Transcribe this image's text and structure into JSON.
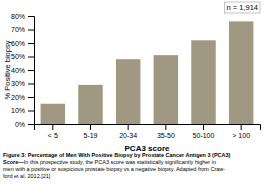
{
  "chart_data": {
    "type": "bar",
    "categories": [
      "< 5",
      "5-19",
      "20-34",
      "35-50",
      "50-100",
      "> 100"
    ],
    "values": [
      15,
      29,
      48,
      51,
      62,
      76
    ],
    "color": "#a09880",
    "xlabel": "PCA3 score",
    "ylabel": "% Positive biopsy",
    "ylim": [
      0,
      80
    ],
    "yticks": [
      {
        "value": 0,
        "label": "0%"
      },
      {
        "value": 10,
        "label": "10%"
      },
      {
        "value": 20,
        "label": "20%"
      },
      {
        "value": 30,
        "label": "30%"
      },
      {
        "value": 40,
        "label": "40%"
      },
      {
        "value": 50,
        "label": "50%"
      },
      {
        "value": 60,
        "label": "60%"
      },
      {
        "value": 70,
        "label": "70%"
      },
      {
        "value": 80,
        "label": "80%"
      }
    ],
    "grid": false,
    "annotation": "n = 1,914",
    "caption": [
      "Figure 3: Percentage of Men With Positive Biopsy by Prostate Cancer Antigen 3 (PCA3)",
      "Score—In this prospective study, the PCA3 score was statistically significantly higher in",
      "men with a positive or suspicious prostate biopsy vs a negative biopsy. Adapted from Craw-",
      "ford et al. 2012.[21]"
    ]
  }
}
